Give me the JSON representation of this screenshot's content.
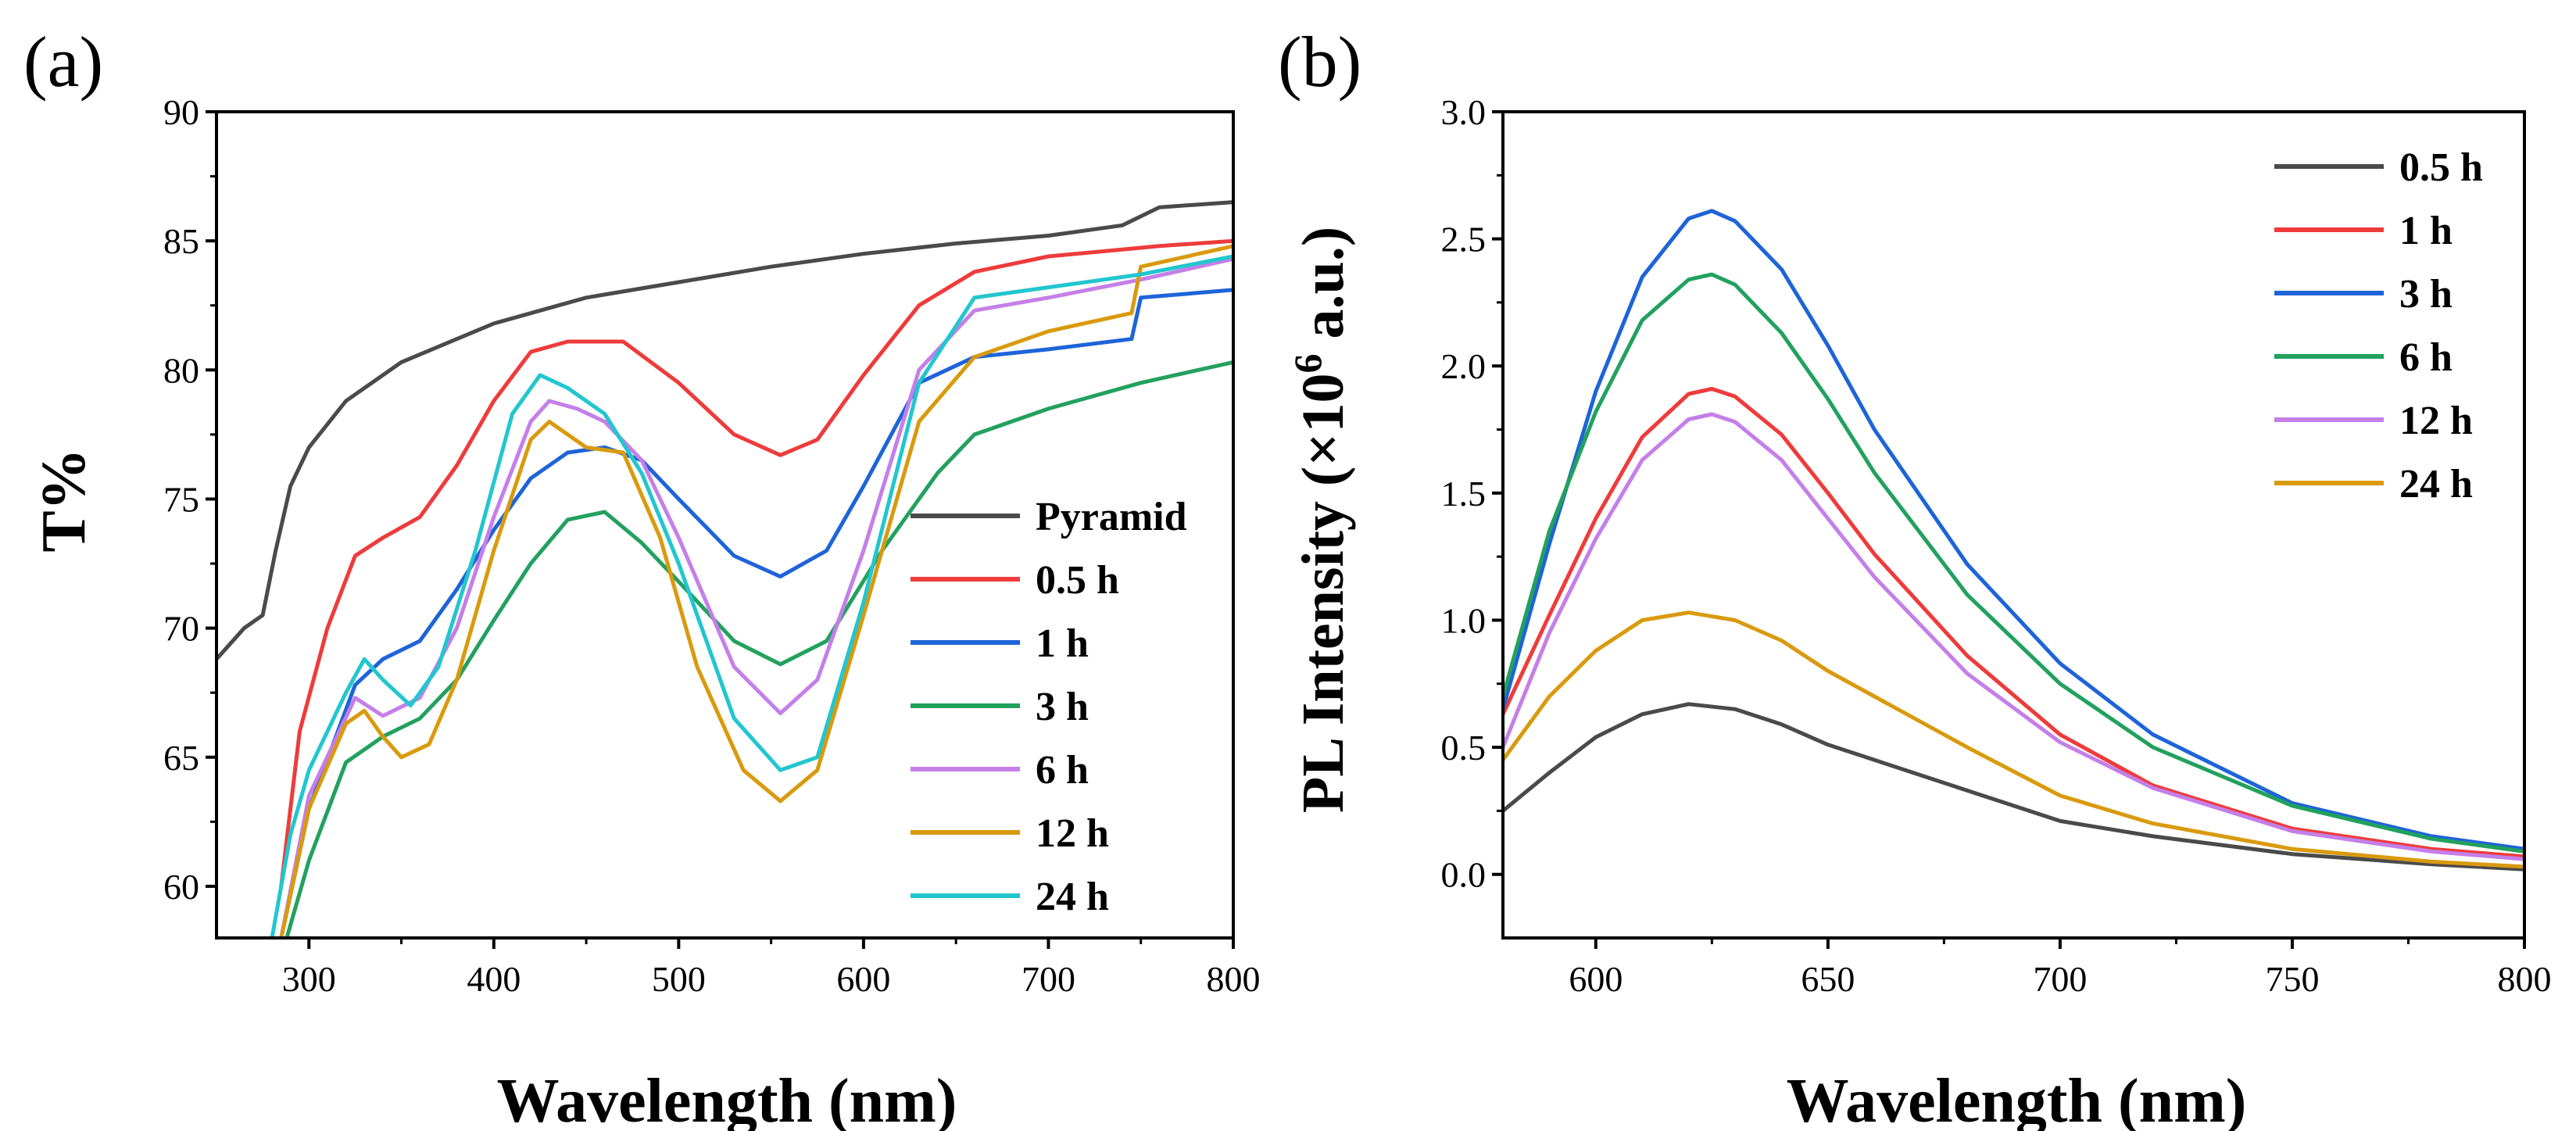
{
  "chart_data": [
    {
      "panel": "(a)",
      "type": "line",
      "xlabel": "Wavelength (nm)",
      "ylabel": "T%",
      "xlim": [
        250,
        800
      ],
      "ylim": [
        58,
        90
      ],
      "xticks": [
        300,
        400,
        500,
        600,
        700,
        800
      ],
      "yticks": [
        60,
        65,
        70,
        75,
        80,
        85,
        90
      ],
      "legend": "lower-right",
      "series": [
        {
          "name": "Pyramid",
          "color": "#4a4a4a",
          "x": [
            250,
            265,
            275,
            282,
            290,
            300,
            320,
            350,
            380,
            400,
            450,
            500,
            550,
            600,
            650,
            700,
            740,
            760,
            800
          ],
          "y": [
            68.8,
            70.0,
            70.5,
            73.0,
            75.5,
            77.0,
            78.8,
            80.3,
            81.2,
            81.8,
            82.8,
            83.4,
            84.0,
            84.5,
            84.9,
            85.2,
            85.6,
            86.3,
            86.5
          ]
        },
        {
          "name": "0.5 h",
          "color": "#ee3b3b",
          "x": [
            285,
            295,
            310,
            325,
            340,
            360,
            380,
            400,
            420,
            440,
            470,
            500,
            530,
            555,
            575,
            600,
            630,
            660,
            700,
            760,
            800
          ],
          "y": [
            60.0,
            66.0,
            70.0,
            72.8,
            73.5,
            74.3,
            76.3,
            78.8,
            80.7,
            81.1,
            81.1,
            79.5,
            77.5,
            76.7,
            77.3,
            79.8,
            82.5,
            83.8,
            84.4,
            84.8,
            85.0
          ]
        },
        {
          "name": "1 h",
          "color": "#1e64d8",
          "x": [
            285,
            300,
            325,
            340,
            360,
            380,
            400,
            420,
            440,
            460,
            480,
            500,
            530,
            555,
            580,
            600,
            630,
            660,
            700,
            745,
            750,
            800
          ],
          "y": [
            58.0,
            63.0,
            67.8,
            68.8,
            69.5,
            71.5,
            73.8,
            75.8,
            76.8,
            77.0,
            76.5,
            75.0,
            72.8,
            72.0,
            73.0,
            75.5,
            79.5,
            80.5,
            80.8,
            81.2,
            82.8,
            83.1
          ]
        },
        {
          "name": "3 h",
          "color": "#22a15e",
          "x": [
            288,
            300,
            320,
            340,
            360,
            380,
            400,
            420,
            440,
            460,
            480,
            500,
            530,
            555,
            580,
            610,
            640,
            660,
            700,
            750,
            800
          ],
          "y": [
            58.0,
            61.0,
            64.8,
            65.8,
            66.5,
            68.0,
            70.3,
            72.5,
            74.2,
            74.5,
            73.3,
            71.8,
            69.5,
            68.6,
            69.5,
            73.0,
            76.0,
            77.5,
            78.5,
            79.5,
            80.3
          ]
        },
        {
          "name": "6 h",
          "color": "#c47fe8",
          "x": [
            285,
            300,
            325,
            340,
            360,
            380,
            400,
            420,
            430,
            445,
            460,
            480,
            500,
            530,
            555,
            575,
            600,
            630,
            660,
            700,
            750,
            800
          ],
          "y": [
            58.0,
            63.5,
            67.3,
            66.6,
            67.3,
            70.0,
            74.3,
            78.0,
            78.8,
            78.5,
            78.0,
            76.5,
            73.5,
            68.5,
            66.7,
            68.0,
            73.0,
            80.0,
            82.3,
            82.8,
            83.5,
            84.3
          ]
        },
        {
          "name": "12 h",
          "color": "#d99a0e",
          "x": [
            285,
            300,
            320,
            330,
            340,
            350,
            365,
            380,
            400,
            420,
            430,
            450,
            470,
            490,
            510,
            535,
            555,
            575,
            600,
            630,
            660,
            700,
            745,
            750,
            800
          ],
          "y": [
            58.0,
            63.0,
            66.3,
            66.8,
            65.8,
            65.0,
            65.5,
            68.0,
            73.0,
            77.3,
            78.0,
            77.0,
            76.8,
            73.5,
            68.5,
            64.5,
            63.3,
            64.5,
            70.5,
            78.0,
            80.5,
            81.5,
            82.2,
            84.0,
            84.8
          ]
        },
        {
          "name": "24 h",
          "color": "#22c6cf",
          "x": [
            280,
            290,
            300,
            320,
            330,
            340,
            355,
            370,
            390,
            410,
            425,
            440,
            460,
            480,
            500,
            530,
            555,
            575,
            600,
            630,
            660,
            700,
            750,
            800
          ],
          "y": [
            58.0,
            62.0,
            64.5,
            67.5,
            68.8,
            68.0,
            67.0,
            68.5,
            73.0,
            78.3,
            79.8,
            79.3,
            78.3,
            76.0,
            72.5,
            66.5,
            64.5,
            65.0,
            71.0,
            79.5,
            82.8,
            83.2,
            83.7,
            84.4
          ]
        }
      ]
    },
    {
      "panel": "(b)",
      "type": "line",
      "xlabel": "Wavelength (nm)",
      "ylabel_main": "PL Intensity (×10",
      "ylabel_sup": "6",
      "ylabel_tail": " a.u.)",
      "xlim": [
        580,
        800
      ],
      "ylim": [
        -0.25,
        3.0
      ],
      "xticks": [
        600,
        650,
        700,
        750,
        800
      ],
      "yticks": [
        "0.0",
        "0.5",
        "1.0",
        "1.5",
        "2.0",
        "2.5",
        "3.0"
      ],
      "legend": "top-right",
      "series": [
        {
          "name": "0.5 h",
          "color": "#4a4a4a",
          "x": [
            580,
            590,
            600,
            610,
            620,
            630,
            640,
            650,
            660,
            680,
            700,
            720,
            750,
            780,
            800
          ],
          "y": [
            0.25,
            0.4,
            0.54,
            0.63,
            0.67,
            0.65,
            0.59,
            0.51,
            0.45,
            0.33,
            0.21,
            0.15,
            0.08,
            0.04,
            0.02
          ]
        },
        {
          "name": "1 h",
          "color": "#ee3b3b",
          "x": [
            580,
            590,
            600,
            610,
            620,
            625,
            630,
            640,
            650,
            660,
            680,
            700,
            720,
            750,
            780,
            800
          ],
          "y": [
            0.63,
            1.02,
            1.4,
            1.72,
            1.89,
            1.91,
            1.88,
            1.73,
            1.5,
            1.26,
            0.86,
            0.55,
            0.35,
            0.18,
            0.1,
            0.07
          ]
        },
        {
          "name": "3 h",
          "color": "#1e64d8",
          "x": [
            580,
            590,
            600,
            610,
            620,
            625,
            630,
            640,
            650,
            660,
            680,
            700,
            720,
            750,
            780,
            800
          ],
          "y": [
            0.65,
            1.3,
            1.9,
            2.35,
            2.58,
            2.61,
            2.57,
            2.38,
            2.08,
            1.75,
            1.22,
            0.83,
            0.55,
            0.28,
            0.15,
            0.1
          ]
        },
        {
          "name": "6 h",
          "color": "#22a15e",
          "x": [
            580,
            590,
            600,
            610,
            620,
            625,
            630,
            640,
            650,
            660,
            680,
            700,
            720,
            750,
            780,
            800
          ],
          "y": [
            0.7,
            1.35,
            1.82,
            2.18,
            2.34,
            2.36,
            2.32,
            2.13,
            1.87,
            1.58,
            1.1,
            0.75,
            0.5,
            0.27,
            0.14,
            0.09
          ]
        },
        {
          "name": "12 h",
          "color": "#c47fe8",
          "x": [
            580,
            590,
            600,
            610,
            620,
            625,
            630,
            640,
            650,
            660,
            680,
            700,
            720,
            750,
            780,
            800
          ],
          "y": [
            0.5,
            0.95,
            1.32,
            1.63,
            1.79,
            1.81,
            1.78,
            1.63,
            1.4,
            1.17,
            0.79,
            0.52,
            0.34,
            0.17,
            0.09,
            0.06
          ]
        },
        {
          "name": "24 h",
          "color": "#d99a0e",
          "x": [
            580,
            590,
            600,
            610,
            620,
            630,
            640,
            650,
            660,
            680,
            700,
            720,
            750,
            780,
            800
          ],
          "y": [
            0.45,
            0.7,
            0.88,
            1.0,
            1.03,
            1.0,
            0.92,
            0.8,
            0.7,
            0.5,
            0.31,
            0.2,
            0.1,
            0.05,
            0.03
          ]
        }
      ]
    }
  ]
}
